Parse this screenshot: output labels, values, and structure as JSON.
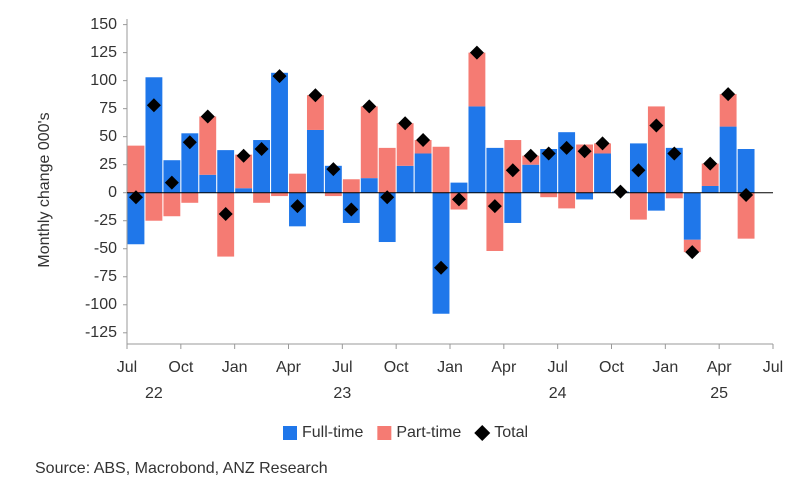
{
  "chart_data": {
    "type": "stacked-bar-with-total",
    "y_label": "Monthly change 000's",
    "source": "Source: ABS, Macrobond, ANZ Research",
    "x": [
      0,
      1,
      2,
      3,
      4,
      5,
      6,
      7,
      8,
      9,
      10,
      11,
      12,
      13,
      14,
      15,
      16,
      17,
      18,
      19,
      20,
      21,
      22,
      23,
      24,
      25,
      26,
      27,
      28,
      29,
      30,
      31,
      32,
      33,
      34
    ],
    "xlim": [
      -0.5,
      35.5
    ],
    "xticks": [
      {
        "value": -0.5,
        "label": "Jul"
      },
      {
        "value": 2.5,
        "label": "Oct"
      },
      {
        "value": 5.5,
        "label": "Jan"
      },
      {
        "value": 8.5,
        "label": "Apr"
      },
      {
        "value": 11.5,
        "label": "Jul"
      },
      {
        "value": 14.5,
        "label": "Oct"
      },
      {
        "value": 17.5,
        "label": "Jan"
      },
      {
        "value": 20.5,
        "label": "Apr"
      },
      {
        "value": 23.5,
        "label": "Jul"
      },
      {
        "value": 26.5,
        "label": "Oct"
      },
      {
        "value": 29.5,
        "label": "Jan"
      },
      {
        "value": 32.5,
        "label": "Apr"
      },
      {
        "value": 35.5,
        "label": "Jul"
      }
    ],
    "year_labels": [
      {
        "value": 1,
        "label": "22"
      },
      {
        "value": 11.5,
        "label": "23"
      },
      {
        "value": 23.5,
        "label": "24"
      },
      {
        "value": 32.5,
        "label": "25"
      }
    ],
    "ylim": [
      -135,
      155
    ],
    "yticks": [
      -125,
      -100,
      -75,
      -50,
      -25,
      0,
      25,
      50,
      75,
      100,
      125,
      150
    ],
    "series": [
      {
        "name": "Full-time",
        "color": "#1f77ea",
        "values": [
          -46,
          103,
          29,
          53,
          16,
          38,
          4,
          47,
          107,
          -30,
          56,
          24,
          -27,
          13,
          -44,
          24,
          35,
          -108,
          9,
          77,
          40,
          -27,
          25,
          39,
          54,
          -6,
          35,
          1,
          44,
          -16,
          40,
          -42,
          6,
          59,
          39
        ]
      },
      {
        "name": "Part-time",
        "color": "#f57b73",
        "values": [
          42,
          -25,
          -21,
          -9,
          52,
          -57,
          30,
          -9,
          -3,
          17,
          31,
          -3,
          12,
          64,
          40,
          38,
          12,
          41,
          -15,
          48,
          -52,
          47,
          8,
          -4,
          -14,
          43,
          9,
          0,
          -24,
          77,
          -5,
          -11,
          20,
          29,
          -41
        ]
      },
      {
        "name": "Total",
        "color": "#000000",
        "values": [
          -4,
          78,
          9,
          45,
          68,
          -19,
          33,
          39,
          104,
          -12,
          87,
          21,
          -15,
          77,
          -4,
          62,
          47,
          -67,
          -6,
          125,
          -12,
          20,
          33,
          35,
          40,
          37,
          44,
          1,
          20,
          60,
          35,
          -53,
          26,
          88,
          -2
        ]
      }
    ]
  }
}
